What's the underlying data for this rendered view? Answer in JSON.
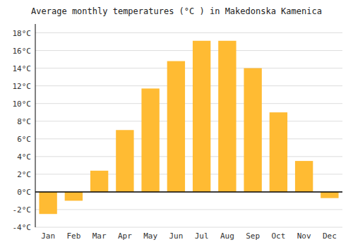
{
  "chart_data": {
    "type": "bar",
    "title": "Average monthly temperatures (°C ) in Makedonska Kamenica",
    "categories": [
      "Jan",
      "Feb",
      "Mar",
      "Apr",
      "May",
      "Jun",
      "Jul",
      "Aug",
      "Sep",
      "Oct",
      "Nov",
      "Dec"
    ],
    "values": [
      -2.5,
      -1.0,
      2.4,
      7.0,
      11.7,
      14.8,
      17.1,
      17.1,
      14.0,
      9.0,
      3.5,
      -0.7
    ],
    "color": "#FFBB33",
    "ylim": [
      -4,
      19
    ],
    "yticks": [
      {
        "value": -4,
        "label": "-4°C"
      },
      {
        "value": -2,
        "label": "-2°C"
      },
      {
        "value": 0,
        "label": "0°C"
      },
      {
        "value": 2,
        "label": "2°C"
      },
      {
        "value": 4,
        "label": "4°C"
      },
      {
        "value": 6,
        "label": "6°C"
      },
      {
        "value": 8,
        "label": "8°C"
      },
      {
        "value": 10,
        "label": "10°C"
      },
      {
        "value": 12,
        "label": "12°C"
      },
      {
        "value": 14,
        "label": "14°C"
      },
      {
        "value": 16,
        "label": "16°C"
      },
      {
        "value": 18,
        "label": "18°C"
      }
    ],
    "grid": true
  }
}
